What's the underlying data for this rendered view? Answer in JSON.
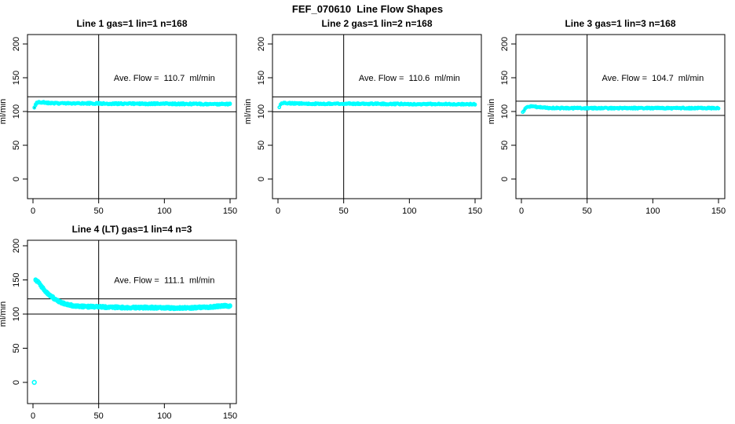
{
  "main_title": "FEF_070610  Line Flow Shapes",
  "colors": {
    "background": "#ffffff",
    "data_marker": "#00ffff",
    "axis": "#000000",
    "text": "#000000"
  },
  "chart_data": [
    {
      "type": "scatter",
      "title": "Line 1 gas=1 lin=1 n=168",
      "xlabel": "",
      "ylabel": "ml/min",
      "xlim": [
        0,
        150
      ],
      "ylim": [
        0,
        200
      ],
      "x_ticks": [
        0,
        50,
        100,
        150
      ],
      "y_ticks": [
        0,
        50,
        100,
        150,
        200
      ],
      "n": 168,
      "ave_flow": 110.7,
      "annotation": "Ave. Flow =  110.7  ml/min",
      "annotation_at": {
        "x": 100,
        "y": 150
      },
      "vline_x": 50,
      "ref_lines": [
        99.6,
        121.8
      ],
      "marker": "open-circle",
      "profile": [
        [
          1,
          105
        ],
        [
          2,
          110
        ],
        [
          3,
          113.5
        ],
        [
          5,
          114
        ],
        [
          8,
          113.5
        ],
        [
          12,
          112.5
        ],
        [
          20,
          112
        ],
        [
          40,
          112
        ],
        [
          70,
          111.5
        ],
        [
          100,
          111.5
        ],
        [
          130,
          111
        ],
        [
          150,
          111
        ]
      ],
      "outliers": []
    },
    {
      "type": "scatter",
      "title": "Line 2 gas=1 lin=2 n=168",
      "xlabel": "",
      "ylabel": "ml/min",
      "xlim": [
        0,
        150
      ],
      "ylim": [
        0,
        200
      ],
      "x_ticks": [
        0,
        50,
        100,
        150
      ],
      "y_ticks": [
        0,
        50,
        100,
        150,
        200
      ],
      "n": 168,
      "ave_flow": 110.6,
      "annotation": "Ave. Flow =  110.6  ml/min",
      "annotation_at": {
        "x": 100,
        "y": 150
      },
      "vline_x": 50,
      "ref_lines": [
        99.5,
        121.7
      ],
      "marker": "open-circle",
      "profile": [
        [
          1,
          107
        ],
        [
          2,
          110.5
        ],
        [
          4,
          113
        ],
        [
          7,
          112.5
        ],
        [
          12,
          112
        ],
        [
          25,
          111.5
        ],
        [
          60,
          111.5
        ],
        [
          100,
          111
        ],
        [
          150,
          110.8
        ]
      ],
      "outliers": []
    },
    {
      "type": "scatter",
      "title": "Line 3 gas=1 lin=3 n=168",
      "xlabel": "",
      "ylabel": "ml/min",
      "xlim": [
        0,
        150
      ],
      "ylim": [
        0,
        200
      ],
      "x_ticks": [
        0,
        50,
        100,
        150
      ],
      "y_ticks": [
        0,
        50,
        100,
        150,
        200
      ],
      "n": 168,
      "ave_flow": 104.7,
      "annotation": "Ave. Flow =  104.7  ml/min",
      "annotation_at": {
        "x": 100,
        "y": 150
      },
      "vline_x": 50,
      "ref_lines": [
        94.2,
        115.2
      ],
      "marker": "open-circle",
      "profile": [
        [
          1,
          99.5
        ],
        [
          3,
          104
        ],
        [
          5,
          107.5
        ],
        [
          8,
          107.5
        ],
        [
          12,
          106.5
        ],
        [
          18,
          105.5
        ],
        [
          30,
          105
        ],
        [
          60,
          105
        ],
        [
          100,
          105
        ],
        [
          150,
          105
        ]
      ],
      "outliers": []
    },
    {
      "type": "scatter",
      "title": "Line 4 (LT) gas=1 lin=4 n=3",
      "xlabel": "",
      "ylabel": "ml/min",
      "xlim": [
        0,
        150
      ],
      "ylim": [
        0,
        200
      ],
      "x_ticks": [
        0,
        50,
        100,
        150
      ],
      "y_ticks": [
        0,
        50,
        100,
        150,
        200
      ],
      "n": 3,
      "ave_flow": 111.1,
      "annotation": "Ave. Flow =  111.1  ml/min",
      "annotation_at": {
        "x": 100,
        "y": 150
      },
      "vline_x": 50,
      "ref_lines": [
        100.0,
        122.2
      ],
      "marker": "open-circle",
      "profile": [
        [
          2,
          150
        ],
        [
          3,
          148.5
        ],
        [
          4,
          146.5
        ],
        [
          5,
          144
        ],
        [
          6,
          141.5
        ],
        [
          7,
          139
        ],
        [
          8,
          136.5
        ],
        [
          10,
          132.5
        ],
        [
          12,
          129
        ],
        [
          14,
          126
        ],
        [
          16,
          123
        ],
        [
          18,
          120.5
        ],
        [
          20,
          118.5
        ],
        [
          23,
          116
        ],
        [
          26,
          114
        ],
        [
          30,
          112.5
        ],
        [
          35,
          111.5
        ],
        [
          40,
          111
        ],
        [
          50,
          110.5
        ],
        [
          60,
          110
        ],
        [
          75,
          109.5
        ],
        [
          90,
          109.5
        ],
        [
          105,
          109
        ],
        [
          115,
          109
        ],
        [
          125,
          109.5
        ],
        [
          135,
          110.5
        ],
        [
          142,
          111.5
        ],
        [
          147,
          112
        ],
        [
          150,
          111.5
        ]
      ],
      "outliers": [
        [
          1,
          0
        ]
      ]
    }
  ]
}
